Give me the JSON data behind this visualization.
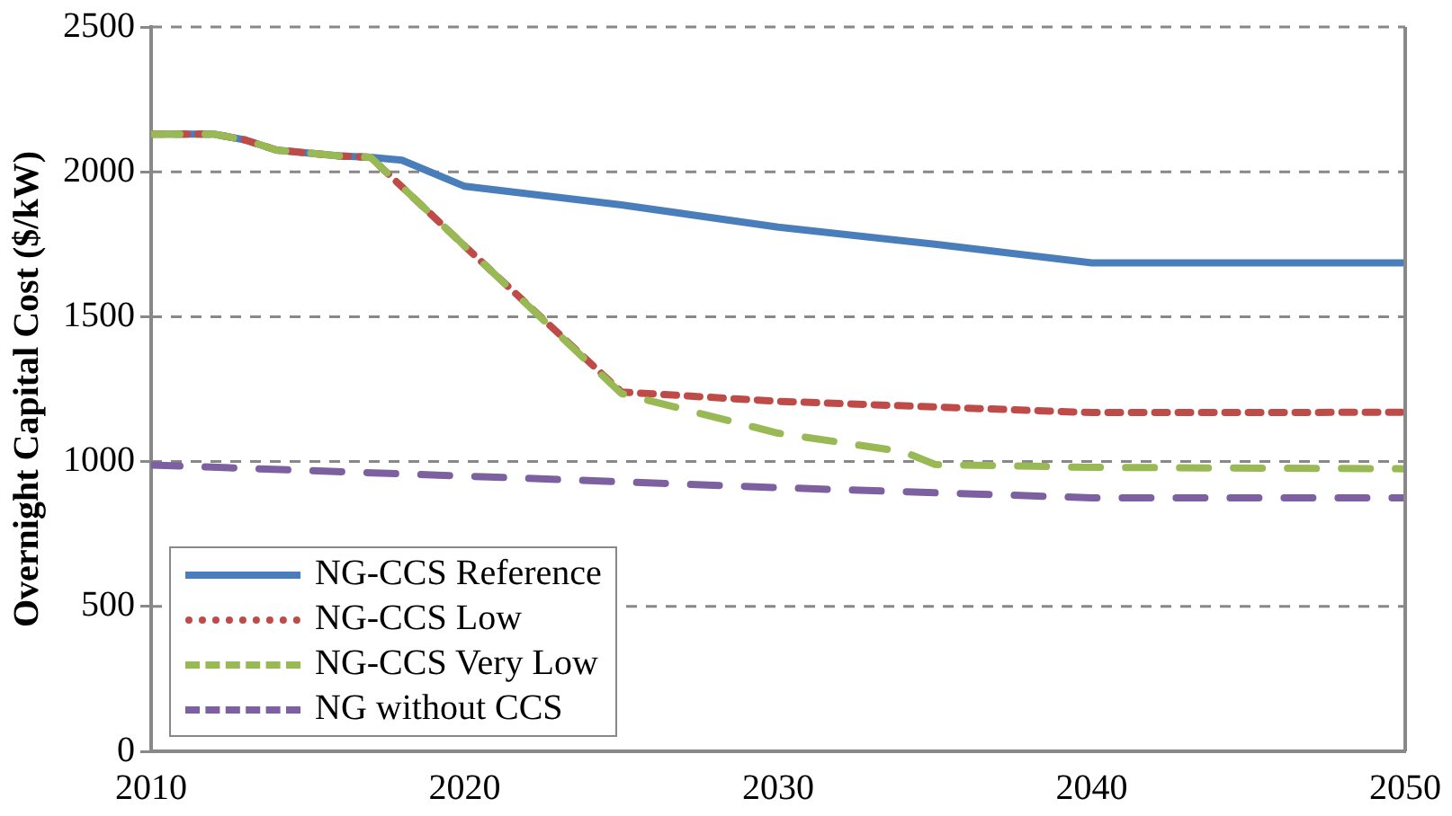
{
  "chart_data": {
    "type": "line",
    "ylabel": "Overnight Capital Cost ($/kW)",
    "xlim": [
      2010,
      2050
    ],
    "xticks": [
      2010,
      2020,
      2030,
      2040,
      2050
    ],
    "ylim": [
      0,
      2500
    ],
    "yticks": [
      0,
      500,
      1000,
      1500,
      2000,
      2500
    ],
    "grid": "y",
    "legend": "bottom left",
    "marker": "none",
    "series": [
      {
        "name": "NG-CCS Reference",
        "color": "#4a7ebb",
        "line_style": "solid",
        "x": [
          2010,
          2012,
          2013,
          2014,
          2016,
          2017,
          2018,
          2020,
          2025,
          2030,
          2035,
          2040,
          2050
        ],
        "values": [
          2130,
          2130,
          2110,
          2075,
          2055,
          2050,
          2040,
          1950,
          1886,
          1809,
          1750,
          1686,
          1686
        ]
      },
      {
        "name": "NG-CCS Low",
        "color": "#be4b48",
        "line_style": "dotted",
        "x": [
          2010,
          2012,
          2013,
          2014,
          2016,
          2017,
          2020,
          2025,
          2030,
          2040,
          2050
        ],
        "values": [
          2130,
          2130,
          2110,
          2075,
          2055,
          2050,
          1744,
          1240,
          1208,
          1169,
          1170
        ]
      },
      {
        "name": "NG-CCS Very Low",
        "color": "#98b954",
        "line_style": "dashed",
        "x": [
          2010,
          2012,
          2013,
          2014,
          2016,
          2017,
          2020,
          2025,
          2030,
          2034,
          2035,
          2040,
          2050
        ],
        "values": [
          2130,
          2130,
          2110,
          2075,
          2055,
          2050,
          1744,
          1235,
          1098,
          1034,
          990,
          980,
          975
        ]
      },
      {
        "name": "NG without CCS",
        "color": "#7d60a0",
        "line_style": "dashed",
        "x": [
          2010,
          2020,
          2030,
          2040,
          2050
        ],
        "values": [
          988,
          950,
          910,
          875,
          875
        ]
      }
    ]
  }
}
